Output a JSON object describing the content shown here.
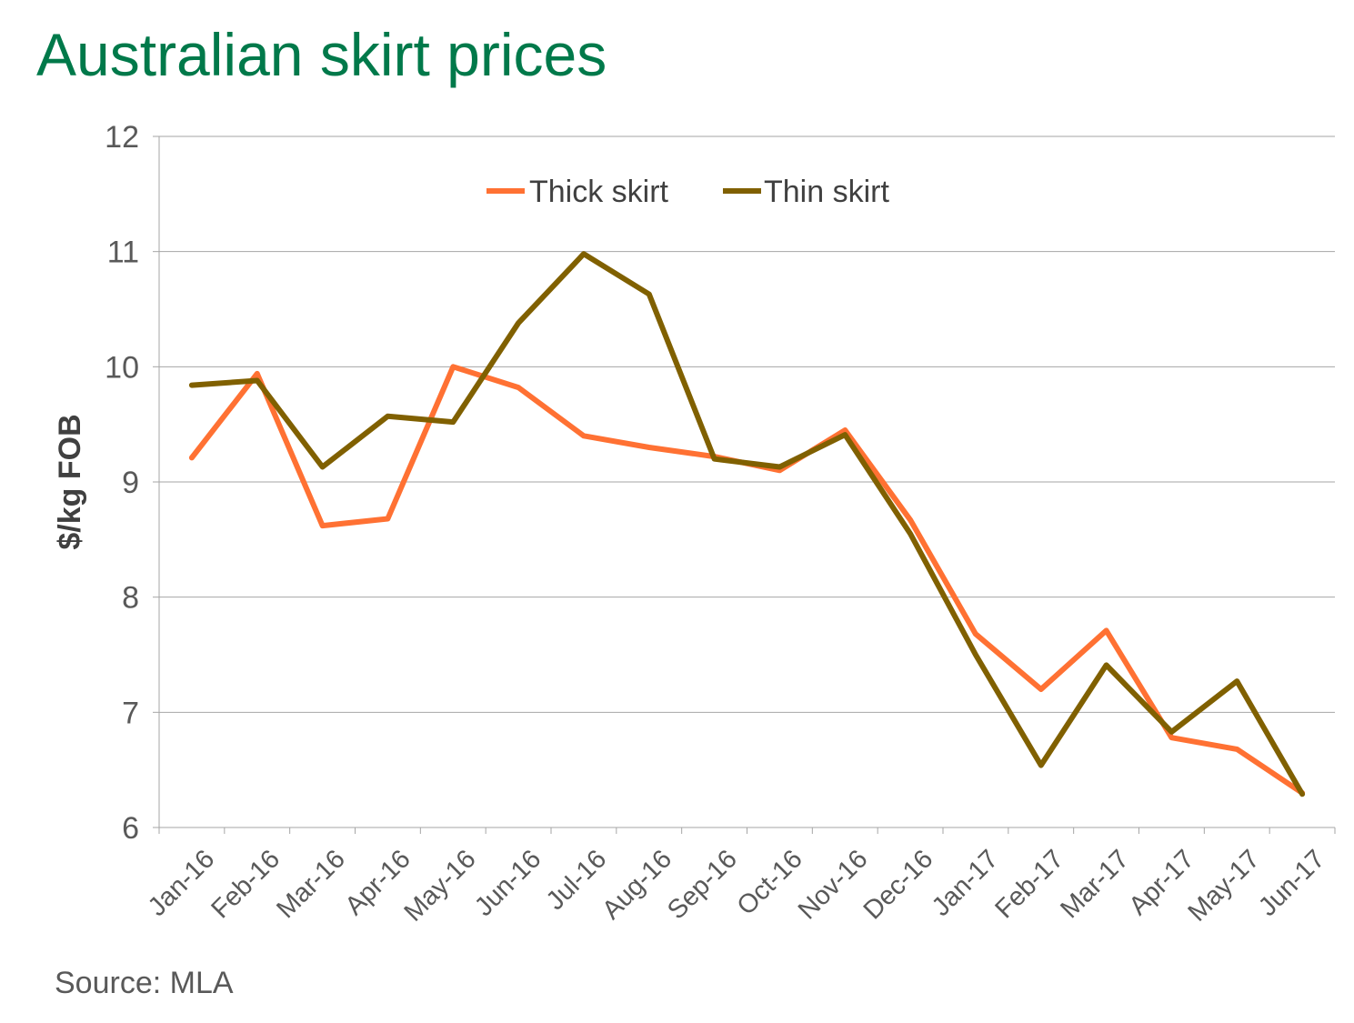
{
  "title": "Australian skirt prices",
  "source": "Source: MLA",
  "chart_data": {
    "type": "line",
    "title": "Australian skirt prices",
    "xlabel": "",
    "ylabel": "$/kg FOB",
    "ylim": [
      6,
      12
    ],
    "yticks": [
      "6",
      "7",
      "8",
      "9",
      "10",
      "11",
      "12"
    ],
    "grid": true,
    "legend_position": "top-center",
    "categories": [
      "Jan-16",
      "Feb-16",
      "Mar-16",
      "Apr-16",
      "May-16",
      "Jun-16",
      "Jul-16",
      "Aug-16",
      "Sep-16",
      "Oct-16",
      "Nov-16",
      "Dec-16",
      "Jan-17",
      "Feb-17",
      "Mar-17",
      "Apr-17",
      "May-17",
      "Jun-17"
    ],
    "series": [
      {
        "name": "Thick skirt",
        "color": "#ff7133",
        "values": [
          9.21,
          9.94,
          8.62,
          8.68,
          10.0,
          9.82,
          9.4,
          9.3,
          9.22,
          9.1,
          9.45,
          8.67,
          7.68,
          7.2,
          7.71,
          6.78,
          6.68,
          6.3
        ]
      },
      {
        "name": "Thin skirt",
        "color": "#806000",
        "values": [
          9.84,
          9.88,
          9.13,
          9.57,
          9.52,
          10.38,
          10.98,
          10.63,
          9.2,
          9.13,
          9.41,
          8.55,
          7.5,
          6.54,
          7.41,
          6.83,
          7.27,
          6.29
        ]
      }
    ]
  }
}
